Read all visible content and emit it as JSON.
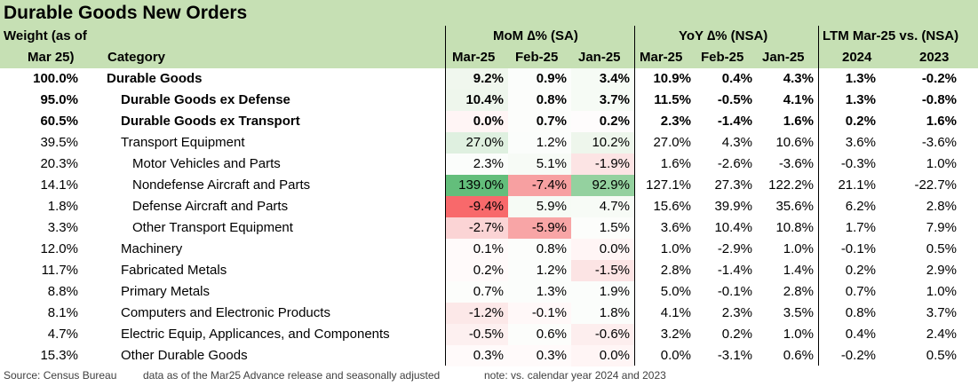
{
  "title": "Durable Goods New Orders",
  "header": {
    "weight_line1": "Weight (as of",
    "weight_line2": "Mar 25)",
    "category": "Category",
    "mom_group": "MoM ∆% (SA)",
    "yoy_group": "YoY ∆% (NSA)",
    "ltm_group": "LTM Mar-25 vs. (NSA)",
    "mom_cols": [
      "Mar-25",
      "Feb-25",
      "Jan-25"
    ],
    "yoy_cols": [
      "Mar-25",
      "Feb-25",
      "Jan-25"
    ],
    "ltm_cols": [
      "2024",
      "2023"
    ]
  },
  "colors": {
    "header_green": "#c6e0b4",
    "positive_strong": "#63be7b",
    "negative_strong": "#f8696b",
    "neutral": "#ffffff"
  },
  "rows": [
    {
      "weight": "100.0%",
      "category": "Durable Goods",
      "indent": 0,
      "bold": true,
      "mom": [
        "9.2%",
        "0.9%",
        "3.4%"
      ],
      "mom_bg": [
        "#f0f7ee",
        "#fbfdfb",
        "#f6fbf5"
      ],
      "yoy": [
        "10.9%",
        "0.4%",
        "4.3%"
      ],
      "ltm": [
        "1.3%",
        "-0.2%"
      ]
    },
    {
      "weight": "95.0%",
      "category": "Durable Goods ex Defense",
      "indent": 1,
      "bold": true,
      "mom": [
        "10.4%",
        "0.8%",
        "3.7%"
      ],
      "mom_bg": [
        "#eef6ec",
        "#fcfdfb",
        "#f6fbf5"
      ],
      "yoy": [
        "11.5%",
        "-0.5%",
        "4.1%"
      ],
      "ltm": [
        "1.3%",
        "-0.8%"
      ]
    },
    {
      "weight": "60.5%",
      "category": "Durable Goods ex Transport",
      "indent": 1,
      "bold": true,
      "mom": [
        "0.0%",
        "0.7%",
        "0.2%"
      ],
      "mom_bg": [
        "#fff5f5",
        "#fcfdfb",
        "#fefcfc"
      ],
      "yoy": [
        "2.3%",
        "-1.4%",
        "1.6%"
      ],
      "ltm": [
        "0.2%",
        "1.6%"
      ]
    },
    {
      "weight": "39.5%",
      "category": "Transport Equipment",
      "indent": 1,
      "bold": false,
      "mom": [
        "27.0%",
        "1.2%",
        "10.2%"
      ],
      "mom_bg": [
        "#dff0e0",
        "#fbfdfb",
        "#eef6ec"
      ],
      "yoy": [
        "27.0%",
        "4.3%",
        "10.6%"
      ],
      "ltm": [
        "3.6%",
        "-3.6%"
      ]
    },
    {
      "weight": "20.3%",
      "category": "Motor Vehicles and Parts",
      "indent": 2,
      "bold": false,
      "mom": [
        "2.3%",
        "5.1%",
        "-1.9%"
      ],
      "mom_bg": [
        "#fbfdfb",
        "#f7fbf6",
        "#fce4e4"
      ],
      "yoy": [
        "1.6%",
        "-2.6%",
        "-3.6%"
      ],
      "ltm": [
        "-0.3%",
        "1.0%"
      ]
    },
    {
      "weight": "14.1%",
      "category": "Nondefense Aircraft and Parts",
      "indent": 2,
      "bold": false,
      "mom": [
        "139.0%",
        "-7.4%",
        "92.9%"
      ],
      "mom_bg": [
        "#63be7b",
        "#f7a0a1",
        "#94d19f"
      ],
      "yoy": [
        "127.1%",
        "27.3%",
        "122.2%"
      ],
      "ltm": [
        "21.1%",
        "-22.7%"
      ]
    },
    {
      "weight": "1.8%",
      "category": "Defense Aircraft and Parts",
      "indent": 2,
      "bold": false,
      "mom": [
        "-9.4%",
        "5.9%",
        "4.7%"
      ],
      "mom_bg": [
        "#f8696b",
        "#f6fbf5",
        "#f7fbf6"
      ],
      "yoy": [
        "15.6%",
        "39.9%",
        "35.6%"
      ],
      "ltm": [
        "6.2%",
        "2.8%"
      ]
    },
    {
      "weight": "3.3%",
      "category": "Other Transport Equipment",
      "indent": 2,
      "bold": false,
      "mom": [
        "-2.7%",
        "-5.9%",
        "1.5%"
      ],
      "mom_bg": [
        "#fbd4d5",
        "#f8a5a6",
        "#fcfdfb"
      ],
      "yoy": [
        "3.6%",
        "10.4%",
        "10.8%"
      ],
      "ltm": [
        "1.7%",
        "7.9%"
      ]
    },
    {
      "weight": "12.0%",
      "category": "Machinery",
      "indent": 1,
      "bold": false,
      "mom": [
        "0.1%",
        "0.8%",
        "0.0%"
      ],
      "mom_bg": [
        "#fffafa",
        "#fcfdfb",
        "#fff5f5"
      ],
      "yoy": [
        "1.0%",
        "-2.9%",
        "1.0%"
      ],
      "ltm": [
        "-0.1%",
        "0.5%"
      ]
    },
    {
      "weight": "11.7%",
      "category": "Fabricated Metals",
      "indent": 1,
      "bold": false,
      "mom": [
        "0.2%",
        "1.2%",
        "-1.5%"
      ],
      "mom_bg": [
        "#fffafa",
        "#fbfdfb",
        "#fce4e4"
      ],
      "yoy": [
        "2.8%",
        "-1.4%",
        "1.4%"
      ],
      "ltm": [
        "0.2%",
        "2.9%"
      ]
    },
    {
      "weight": "8.8%",
      "category": "Primary Metals",
      "indent": 1,
      "bold": false,
      "mom": [
        "0.7%",
        "1.3%",
        "1.9%"
      ],
      "mom_bg": [
        "#fcfdfb",
        "#fbfdfb",
        "#fbfdfb"
      ],
      "yoy": [
        "5.0%",
        "-0.1%",
        "2.8%"
      ],
      "ltm": [
        "0.7%",
        "1.0%"
      ]
    },
    {
      "weight": "8.1%",
      "category": "Computers and Electronic Products",
      "indent": 1,
      "bold": false,
      "mom": [
        "-1.2%",
        "-0.1%",
        "1.8%"
      ],
      "mom_bg": [
        "#fce8e8",
        "#fff8f8",
        "#fbfdfb"
      ],
      "yoy": [
        "4.1%",
        "2.3%",
        "3.5%"
      ],
      "ltm": [
        "0.8%",
        "3.7%"
      ]
    },
    {
      "weight": "4.7%",
      "category": "Electric Equip, Applicances, and Components",
      "indent": 1,
      "bold": false,
      "mom": [
        "-0.5%",
        "0.6%",
        "-0.6%"
      ],
      "mom_bg": [
        "#fdf0f0",
        "#fcfdfb",
        "#fdeeee"
      ],
      "yoy": [
        "3.2%",
        "0.2%",
        "1.0%"
      ],
      "ltm": [
        "0.4%",
        "2.4%"
      ]
    },
    {
      "weight": "15.3%",
      "category": "Other Durable Goods",
      "indent": 1,
      "bold": false,
      "mom": [
        "0.3%",
        "0.3%",
        "0.0%"
      ],
      "mom_bg": [
        "#fffafa",
        "#fffafa",
        "#fff5f5"
      ],
      "yoy": [
        "0.0%",
        "-3.1%",
        "0.6%"
      ],
      "ltm": [
        "-0.2%",
        "0.5%"
      ]
    }
  ],
  "footer": {
    "source": "Source: Census Bureau",
    "data_note": "data as of the Mar25 Advance release and seasonally adjusted",
    "calendar_note": "note: vs. calendar year 2024 and 2023"
  }
}
